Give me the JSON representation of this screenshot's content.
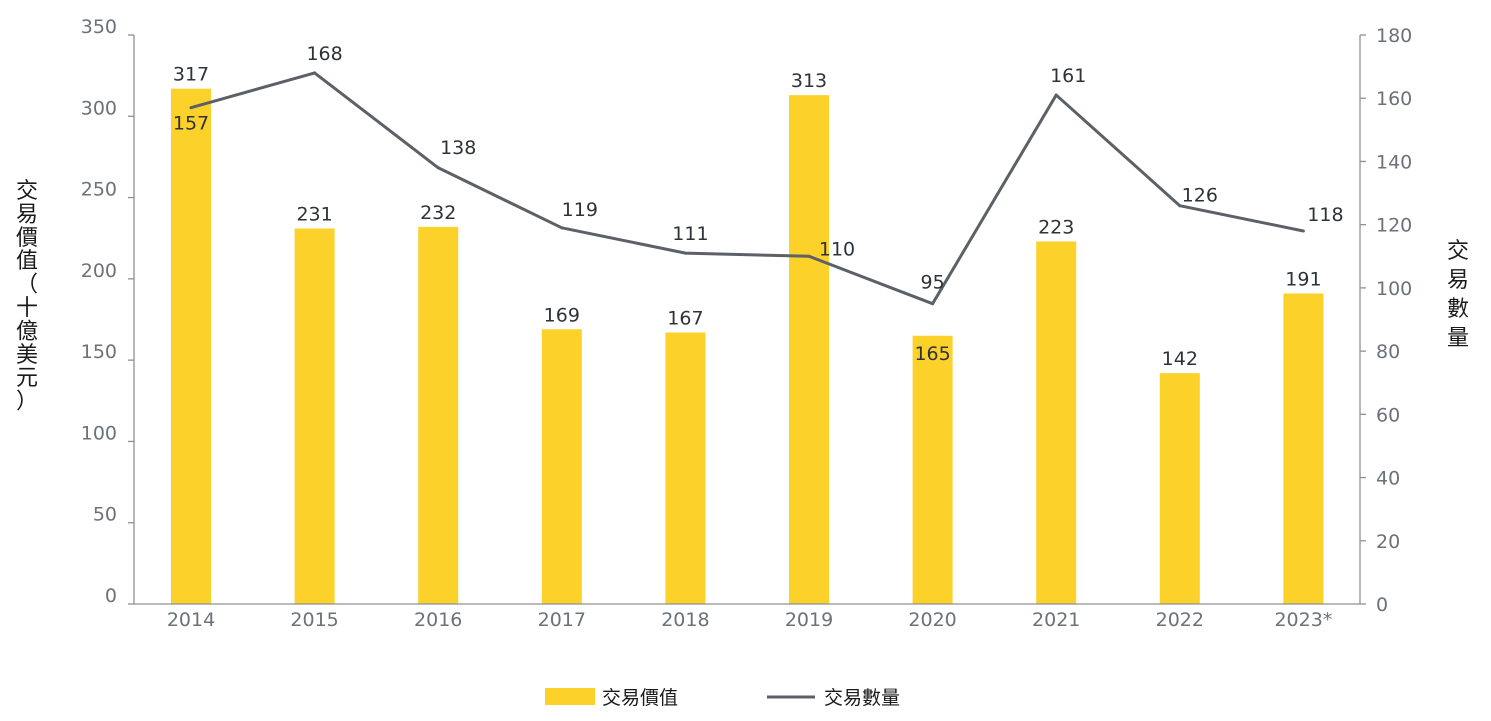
{
  "chart_data": {
    "type": "bar",
    "categories": [
      "2014",
      "2015",
      "2016",
      "2017",
      "2018",
      "2019",
      "2020",
      "2021",
      "2022",
      "2023*"
    ],
    "series": [
      {
        "name": "交易價值",
        "type": "bar",
        "axis": "left",
        "color": "#fcd22a",
        "values": [
          317,
          231,
          232,
          169,
          167,
          313,
          165,
          223,
          142,
          191
        ],
        "labels": [
          "317",
          "231",
          "232",
          "169",
          "167",
          "313",
          "165",
          "223",
          "142",
          "191"
        ]
      },
      {
        "name": "交易數量",
        "type": "line",
        "axis": "right",
        "color": "#5c6167",
        "values": [
          157,
          168,
          138,
          119,
          111,
          110,
          95,
          161,
          126,
          118
        ],
        "labels": [
          "157",
          "168",
          "138",
          "119",
          "111",
          "110",
          "95",
          "161",
          "126",
          "118"
        ]
      }
    ],
    "y_left": {
      "label": "交易價值（十億美元）",
      "label_lines": [
        "交",
        "易",
        "價",
        "值",
        "（",
        "十",
        "億",
        "美",
        "元",
        "）"
      ],
      "ylim": [
        0,
        350
      ],
      "ticks": [
        "0",
        "50",
        "100",
        "150",
        "200",
        "250",
        "300",
        "350"
      ]
    },
    "y_right": {
      "label": "交易數量",
      "label_lines": [
        "交",
        "易",
        "數",
        "量"
      ],
      "ylim": [
        0,
        180
      ],
      "ticks": [
        "0",
        "20",
        "40",
        "60",
        "80",
        "100",
        "120",
        "140",
        "160",
        "180"
      ]
    },
    "grid": false,
    "legend": "bottom-center"
  }
}
